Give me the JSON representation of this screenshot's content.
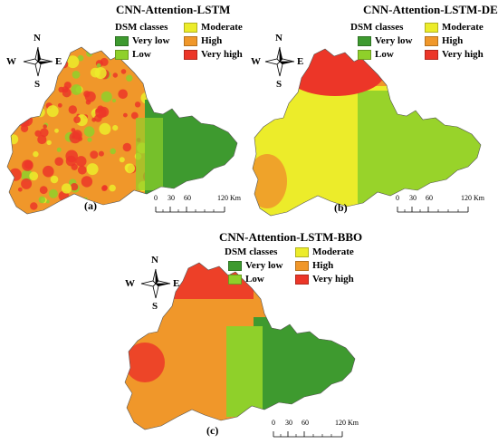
{
  "palette": {
    "very_low": "#3e9a2f",
    "low": "#8fd02a",
    "moderate": "#ecec2a",
    "high": "#f0972a",
    "very_high": "#ec3628"
  },
  "panels": [
    {
      "id": "a",
      "title": "CNN-Attention-LSTM",
      "label": "(a)",
      "legend_title": "DSM classes",
      "classes": [
        "Very low",
        "Low",
        "Moderate",
        "High",
        "Very high"
      ],
      "compass": {
        "n": "N",
        "s": "S",
        "e": "E",
        "w": "W"
      },
      "scale_ticks": [
        "0",
        "30",
        "60",
        "120 Km"
      ]
    },
    {
      "id": "b",
      "title": "CNN-Attention-LSTM-DE",
      "label": "(b)",
      "legend_title": "DSM classes",
      "classes": [
        "Very low",
        "Low",
        "Moderate",
        "High",
        "Very high"
      ],
      "compass": {
        "n": "N",
        "s": "S",
        "e": "E",
        "w": "W"
      },
      "scale_ticks": [
        "0",
        "30",
        "60",
        "120 Km"
      ]
    },
    {
      "id": "c",
      "title": "CNN-Attention-LSTM-BBO",
      "label": "(c)",
      "legend_title": "DSM classes",
      "classes": [
        "Very low",
        "Low",
        "Moderate",
        "High",
        "Very high"
      ],
      "compass": {
        "n": "N",
        "s": "S",
        "e": "E",
        "w": "W"
      },
      "scale_ticks": [
        "0",
        "30",
        "60",
        "120 Km"
      ]
    }
  ]
}
